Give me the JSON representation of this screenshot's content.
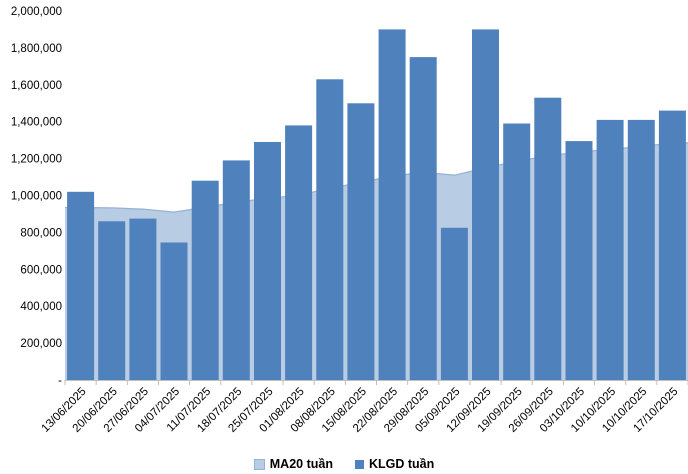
{
  "chart_data": {
    "type": "bar",
    "subtype": "combo-column-area",
    "title": "",
    "xlabel": "",
    "ylabel": "",
    "categories": [
      "13/06/2025",
      "20/06/2025",
      "27/06/2025",
      "04/07/2025",
      "11/07/2025",
      "18/07/2025",
      "25/07/2025",
      "01/08/2025",
      "08/08/2025",
      "15/08/2025",
      "22/08/2025",
      "29/08/2025",
      "05/09/2025",
      "12/09/2025",
      "19/09/2025",
      "26/09/2025",
      "03/10/2025",
      "10/10/2025",
      "10/10/2025",
      "17/10/2025"
    ],
    "series": [
      {
        "name": "MA20 tuần",
        "type": "area",
        "fill": "#B8CCE4",
        "line": "#95B3D7",
        "values": [
          935000,
          933000,
          926000,
          910000,
          936000,
          963000,
          985000,
          1000000,
          1040000,
          1070000,
          1105000,
          1125000,
          1110000,
          1150000,
          1185000,
          1215000,
          1235000,
          1250000,
          1265000,
          1285000
        ]
      },
      {
        "name": "KLGD tuần",
        "type": "bar",
        "color": "#4F81BD",
        "values": [
          1020000,
          860000,
          875000,
          745000,
          1080000,
          1190000,
          1290000,
          1380000,
          1630000,
          1500000,
          1900000,
          1750000,
          825000,
          1900000,
          1390000,
          1530000,
          1295000,
          1410000,
          1410000,
          1460000
        ]
      }
    ],
    "ylim": [
      0,
      2000000
    ],
    "y_ticks": [
      {
        "value": 2000000,
        "label": "2,000,000"
      },
      {
        "value": 1800000,
        "label": "1,800,000"
      },
      {
        "value": 1600000,
        "label": "1,600,000"
      },
      {
        "value": 1400000,
        "label": "1,400,000"
      },
      {
        "value": 1200000,
        "label": "1,200,000"
      },
      {
        "value": 1000000,
        "label": "1,000,000"
      },
      {
        "value": 800000,
        "label": "800,000"
      },
      {
        "value": 600000,
        "label": "600,000"
      },
      {
        "value": 400000,
        "label": "400,000"
      },
      {
        "value": 200000,
        "label": "200,000"
      },
      {
        "value": 0,
        "label": "-"
      }
    ],
    "grid": "off",
    "legend_position": "bottom",
    "axis_color": "#BFBFBF",
    "text_color": "#000000",
    "background": "#FFFFFF"
  }
}
